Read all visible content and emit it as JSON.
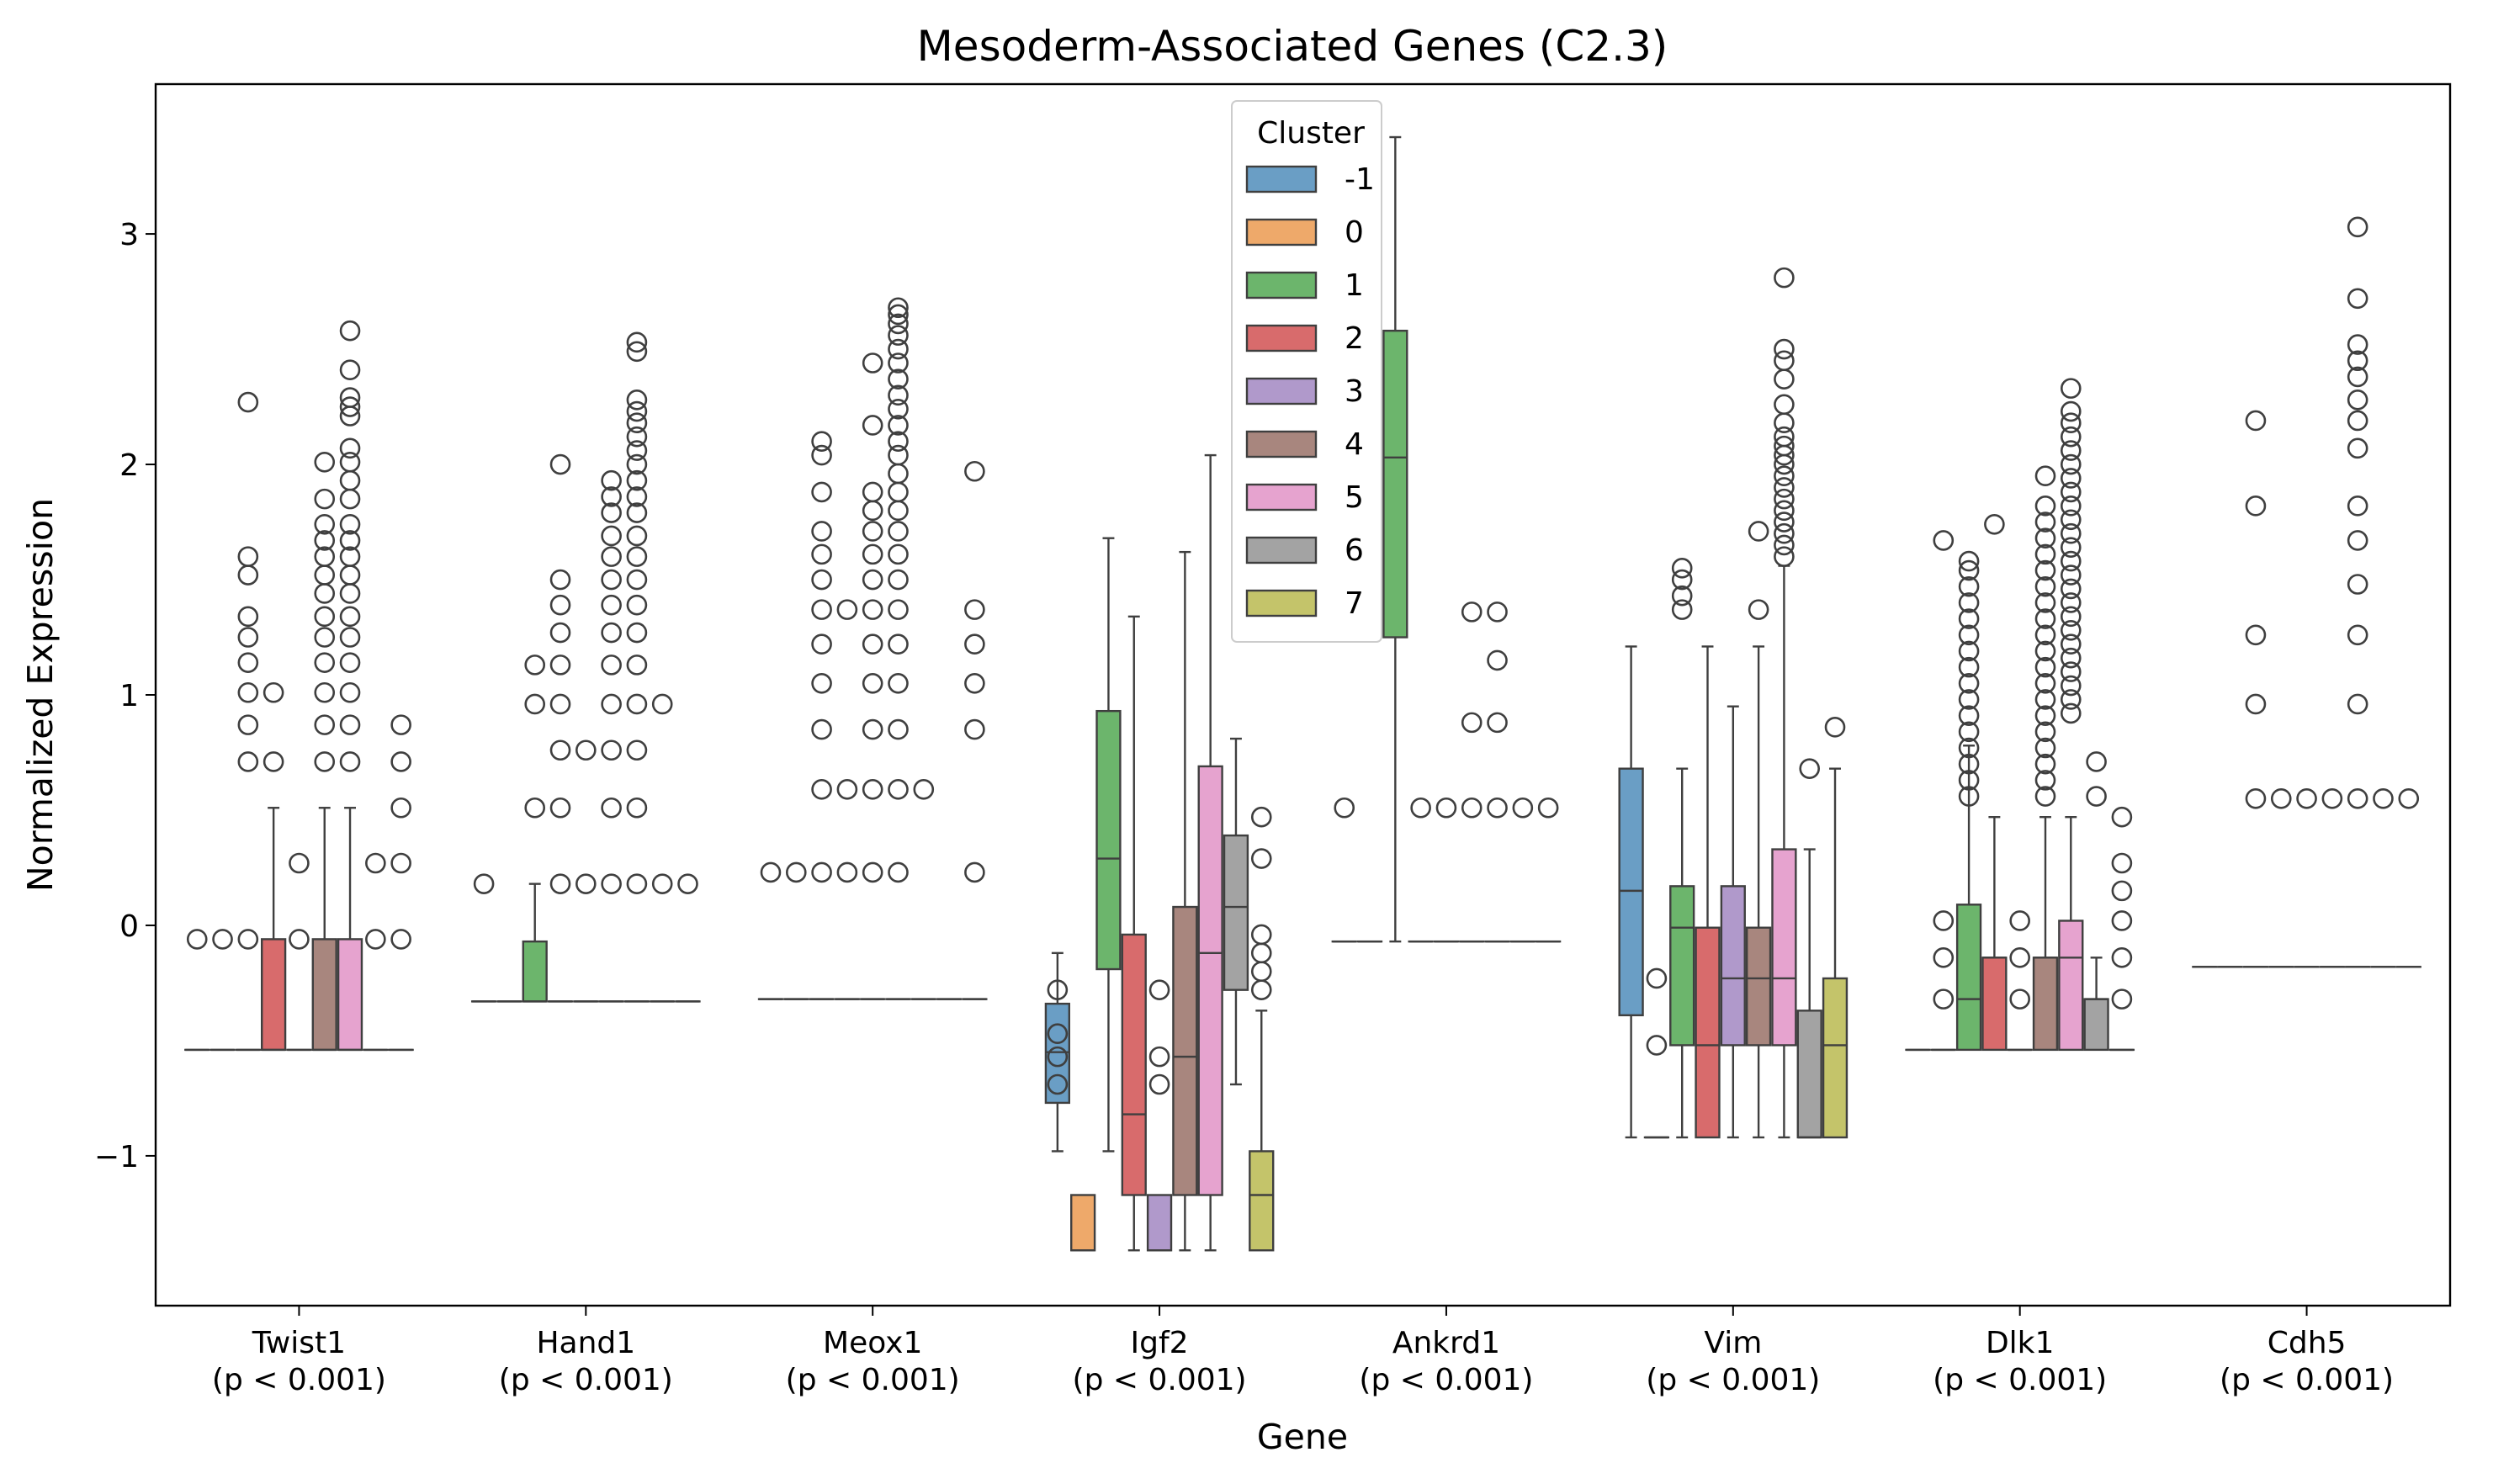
{
  "chart_data": {
    "type": "box",
    "title": "Mesoderm-Associated Genes (C2.3)",
    "xlabel": "Gene",
    "ylabel": "Normalized Expression",
    "ylim": [
      -1.65,
      3.65
    ],
    "yticks": [
      -1,
      0,
      1,
      2,
      3
    ],
    "grid": false,
    "legend": {
      "title": "Cluster",
      "placement": "top-center"
    },
    "categories": [
      {
        "name": "Twist1",
        "p": "(p < 0.001)"
      },
      {
        "name": "Hand1",
        "p": "(p < 0.001)"
      },
      {
        "name": "Meox1",
        "p": "(p < 0.001)"
      },
      {
        "name": "Igf2",
        "p": "(p < 0.001)"
      },
      {
        "name": "Ankrd1",
        "p": "(p < 0.001)"
      },
      {
        "name": "Vim",
        "p": "(p < 0.001)"
      },
      {
        "name": "Dlk1",
        "p": "(p < 0.001)"
      },
      {
        "name": "Cdh5",
        "p": "(p < 0.001)"
      }
    ],
    "clusters": [
      {
        "name": "-1",
        "color": "#6a9ec5"
      },
      {
        "name": "0",
        "color": "#eea96a"
      },
      {
        "name": "1",
        "color": "#6cb56c"
      },
      {
        "name": "2",
        "color": "#d86b6c"
      },
      {
        "name": "3",
        "color": "#b099cb"
      },
      {
        "name": "4",
        "color": "#a8867e"
      },
      {
        "name": "5",
        "color": "#e6a3cf"
      },
      {
        "name": "6",
        "color": "#a3a3a3"
      },
      {
        "name": "7",
        "color": "#c4c46a"
      }
    ],
    "boxes": [
      [
        {
          "low": -0.54,
          "q1": -0.54,
          "med": -0.54,
          "q3": -0.54,
          "high": -0.54,
          "fliers": [
            -0.06
          ]
        },
        {
          "low": -0.54,
          "q1": -0.54,
          "med": -0.54,
          "q3": -0.54,
          "high": -0.54,
          "fliers": [
            -0.06
          ]
        },
        {
          "low": -0.54,
          "q1": -0.54,
          "med": -0.54,
          "q3": -0.54,
          "high": -0.54,
          "fliers": [
            -0.06,
            0.71,
            0.87,
            1.01,
            1.14,
            1.25,
            1.34,
            1.52,
            1.6,
            2.27
          ]
        },
        {
          "low": -0.54,
          "q1": -0.54,
          "med": -0.54,
          "q3": -0.06,
          "high": 0.51,
          "fliers": [
            0.71,
            1.01
          ]
        },
        {
          "low": -0.54,
          "q1": -0.54,
          "med": -0.54,
          "q3": -0.54,
          "high": -0.54,
          "fliers": [
            -0.06,
            0.27
          ]
        },
        {
          "low": -0.54,
          "q1": -0.54,
          "med": -0.54,
          "q3": -0.06,
          "high": 0.51,
          "fliers": [
            0.71,
            0.87,
            1.01,
            1.14,
            1.25,
            1.34,
            1.44,
            1.52,
            1.6,
            1.67,
            1.74,
            1.85,
            2.01
          ]
        },
        {
          "low": -0.54,
          "q1": -0.54,
          "med": -0.54,
          "q3": -0.06,
          "high": 0.51,
          "fliers": [
            0.71,
            0.87,
            1.01,
            1.14,
            1.25,
            1.34,
            1.44,
            1.52,
            1.6,
            1.67,
            1.74,
            1.85,
            1.93,
            2.01,
            2.07,
            2.21,
            2.25,
            2.29,
            2.41,
            2.58
          ]
        },
        {
          "low": -0.54,
          "q1": -0.54,
          "med": -0.54,
          "q3": -0.54,
          "high": -0.54,
          "fliers": [
            -0.06,
            0.27
          ]
        },
        {
          "low": -0.54,
          "q1": -0.54,
          "med": -0.54,
          "q3": -0.54,
          "high": -0.54,
          "fliers": [
            -0.06,
            0.27,
            0.51,
            0.71,
            0.87
          ]
        }
      ],
      [
        {
          "low": -0.33,
          "q1": -0.33,
          "med": -0.33,
          "q3": -0.33,
          "high": -0.33,
          "fliers": [
            0.18
          ]
        },
        {
          "low": -0.33,
          "q1": -0.33,
          "med": -0.33,
          "q3": -0.33,
          "high": -0.33,
          "fliers": []
        },
        {
          "low": -0.33,
          "q1": -0.33,
          "med": -0.33,
          "q3": -0.07,
          "high": 0.18,
          "fliers": [
            0.51,
            0.96,
            1.13
          ]
        },
        {
          "low": -0.33,
          "q1": -0.33,
          "med": -0.33,
          "q3": -0.33,
          "high": -0.33,
          "fliers": [
            0.18,
            0.51,
            0.76,
            0.96,
            1.13,
            1.27,
            1.39,
            1.5,
            2.0
          ]
        },
        {
          "low": -0.33,
          "q1": -0.33,
          "med": -0.33,
          "q3": -0.33,
          "high": -0.33,
          "fliers": [
            0.18,
            0.76
          ]
        },
        {
          "low": -0.33,
          "q1": -0.33,
          "med": -0.33,
          "q3": -0.33,
          "high": -0.33,
          "fliers": [
            0.18,
            0.51,
            0.76,
            0.96,
            1.13,
            1.27,
            1.39,
            1.5,
            1.6,
            1.69,
            1.79,
            1.86,
            1.93
          ]
        },
        {
          "low": -0.33,
          "q1": -0.33,
          "med": -0.33,
          "q3": -0.33,
          "high": -0.33,
          "fliers": [
            0.18,
            0.51,
            0.76,
            0.96,
            1.13,
            1.27,
            1.39,
            1.5,
            1.6,
            1.69,
            1.79,
            1.86,
            1.93,
            2.0,
            2.06,
            2.12,
            2.18,
            2.23,
            2.28,
            2.49,
            2.53
          ]
        },
        {
          "low": -0.33,
          "q1": -0.33,
          "med": -0.33,
          "q3": -0.33,
          "high": -0.33,
          "fliers": [
            0.18,
            0.96
          ]
        },
        {
          "low": -0.33,
          "q1": -0.33,
          "med": -0.33,
          "q3": -0.33,
          "high": -0.33,
          "fliers": [
            0.18
          ]
        }
      ],
      [
        {
          "low": -0.32,
          "q1": -0.32,
          "med": -0.32,
          "q3": -0.32,
          "high": -0.32,
          "fliers": [
            0.23
          ]
        },
        {
          "low": -0.32,
          "q1": -0.32,
          "med": -0.32,
          "q3": -0.32,
          "high": -0.32,
          "fliers": [
            0.23
          ]
        },
        {
          "low": -0.32,
          "q1": -0.32,
          "med": -0.32,
          "q3": -0.32,
          "high": -0.32,
          "fliers": [
            0.23,
            0.59,
            0.85,
            1.05,
            1.22,
            1.37,
            1.5,
            1.61,
            1.71,
            1.88,
            2.04,
            2.1
          ]
        },
        {
          "low": -0.32,
          "q1": -0.32,
          "med": -0.32,
          "q3": -0.32,
          "high": -0.32,
          "fliers": [
            0.23,
            0.59,
            1.37
          ]
        },
        {
          "low": -0.32,
          "q1": -0.32,
          "med": -0.32,
          "q3": -0.32,
          "high": -0.32,
          "fliers": [
            0.23,
            0.59,
            0.85,
            1.05,
            1.22,
            1.37,
            1.5,
            1.61,
            1.71,
            1.8,
            1.88,
            2.17,
            2.44
          ]
        },
        {
          "low": -0.32,
          "q1": -0.32,
          "med": -0.32,
          "q3": -0.32,
          "high": -0.32,
          "fliers": [
            0.23,
            0.59,
            0.85,
            1.05,
            1.22,
            1.37,
            1.5,
            1.61,
            1.71,
            1.8,
            1.88,
            1.96,
            2.04,
            2.1,
            2.17,
            2.24,
            2.3,
            2.37,
            2.44,
            2.5,
            2.56,
            2.61,
            2.65,
            2.68
          ]
        },
        {
          "low": -0.32,
          "q1": -0.32,
          "med": -0.32,
          "q3": -0.32,
          "high": -0.32,
          "fliers": [
            0.59
          ]
        },
        {
          "low": -0.32,
          "q1": -0.32,
          "med": -0.32,
          "q3": -0.32,
          "high": -0.32,
          "fliers": []
        },
        {
          "low": -0.32,
          "q1": -0.32,
          "med": -0.32,
          "q3": -0.32,
          "high": -0.32,
          "fliers": [
            0.23,
            0.85,
            1.05,
            1.22,
            1.37,
            1.97
          ]
        }
      ],
      [
        {
          "low": -0.98,
          "q1": -0.77,
          "med": -0.55,
          "q3": -0.34,
          "high": -0.12,
          "fliers": [
            -0.28,
            -0.47,
            -0.57,
            -0.69
          ]
        },
        {
          "low": -1.41,
          "q1": -1.41,
          "med": -1.41,
          "q3": -1.17,
          "high": -1.17,
          "fliers": []
        },
        {
          "low": -0.98,
          "q1": -0.19,
          "med": 0.29,
          "q3": 0.93,
          "high": 1.68,
          "fliers": []
        },
        {
          "low": -1.41,
          "q1": -1.17,
          "med": -0.82,
          "q3": -0.04,
          "high": 1.34,
          "fliers": []
        },
        {
          "low": -1.41,
          "q1": -1.41,
          "med": -1.41,
          "q3": -1.17,
          "high": -1.17,
          "fliers": [
            -0.28,
            -0.57,
            -0.69
          ]
        },
        {
          "low": -1.41,
          "q1": -1.17,
          "med": -0.57,
          "q3": 0.08,
          "high": 1.62,
          "fliers": []
        },
        {
          "low": -1.41,
          "q1": -1.17,
          "med": -0.12,
          "q3": 0.69,
          "high": 2.04,
          "fliers": []
        },
        {
          "low": -0.69,
          "q1": -0.28,
          "med": 0.08,
          "q3": 0.39,
          "high": 0.81,
          "fliers": []
        },
        {
          "low": -1.41,
          "q1": -1.41,
          "med": -1.17,
          "q3": -0.98,
          "high": -0.37,
          "fliers": [
            0.47,
            0.29,
            -0.04,
            -0.12,
            -0.2,
            -0.28
          ]
        }
      ],
      [
        {
          "low": -0.07,
          "q1": -0.07,
          "med": -0.07,
          "q3": -0.07,
          "high": -0.07,
          "fliers": [
            0.51
          ]
        },
        {
          "low": -0.07,
          "q1": -0.07,
          "med": -0.07,
          "q3": -0.07,
          "high": -0.07,
          "fliers": []
        },
        {
          "low": -0.07,
          "q1": 1.25,
          "med": 2.03,
          "q3": 2.58,
          "high": 3.42,
          "fliers": []
        },
        {
          "low": -0.07,
          "q1": -0.07,
          "med": -0.07,
          "q3": -0.07,
          "high": -0.07,
          "fliers": [
            0.51
          ]
        },
        {
          "low": -0.07,
          "q1": -0.07,
          "med": -0.07,
          "q3": -0.07,
          "high": -0.07,
          "fliers": [
            0.51
          ]
        },
        {
          "low": -0.07,
          "q1": -0.07,
          "med": -0.07,
          "q3": -0.07,
          "high": -0.07,
          "fliers": [
            0.51,
            0.88,
            1.36
          ]
        },
        {
          "low": -0.07,
          "q1": -0.07,
          "med": -0.07,
          "q3": -0.07,
          "high": -0.07,
          "fliers": [
            0.51,
            0.88,
            1.15,
            1.36
          ]
        },
        {
          "low": -0.07,
          "q1": -0.07,
          "med": -0.07,
          "q3": -0.07,
          "high": -0.07,
          "fliers": [
            0.51
          ]
        },
        {
          "low": -0.07,
          "q1": -0.07,
          "med": -0.07,
          "q3": -0.07,
          "high": -0.07,
          "fliers": [
            0.51
          ]
        }
      ],
      [
        {
          "low": -0.92,
          "q1": -0.39,
          "med": 0.15,
          "q3": 0.68,
          "high": 1.21,
          "fliers": []
        },
        {
          "low": -0.92,
          "q1": -0.92,
          "med": -0.92,
          "q3": -0.92,
          "high": -0.92,
          "fliers": [
            -0.23,
            -0.52
          ]
        },
        {
          "low": -0.92,
          "q1": -0.52,
          "med": -0.01,
          "q3": 0.17,
          "high": 0.68,
          "fliers": [
            1.37,
            1.43,
            1.5,
            1.55
          ]
        },
        {
          "low": -0.92,
          "q1": -0.92,
          "med": -0.52,
          "q3": -0.01,
          "high": 1.21,
          "fliers": []
        },
        {
          "low": -0.92,
          "q1": -0.52,
          "med": -0.23,
          "q3": 0.17,
          "high": 0.95,
          "fliers": []
        },
        {
          "low": -0.92,
          "q1": -0.52,
          "med": -0.23,
          "q3": -0.01,
          "high": 1.21,
          "fliers": [
            1.37,
            1.71
          ]
        },
        {
          "low": -0.92,
          "q1": -0.52,
          "med": -0.23,
          "q3": 0.33,
          "high": 1.56,
          "fliers": [
            1.6,
            1.65,
            1.7,
            1.75,
            1.8,
            1.85,
            1.9,
            1.95,
            2.0,
            2.04,
            2.08,
            2.12,
            2.18,
            2.26,
            2.37,
            2.45,
            2.5,
            2.81
          ]
        },
        {
          "low": -0.92,
          "q1": -0.92,
          "med": -0.92,
          "q3": -0.37,
          "high": 0.33,
          "fliers": [
            0.68
          ]
        },
        {
          "low": -0.92,
          "q1": -0.92,
          "med": -0.52,
          "q3": -0.23,
          "high": 0.68,
          "fliers": [
            0.86
          ]
        }
      ],
      [
        {
          "low": -0.54,
          "q1": -0.54,
          "med": -0.54,
          "q3": -0.54,
          "high": -0.54,
          "fliers": []
        },
        {
          "low": -0.54,
          "q1": -0.54,
          "med": -0.54,
          "q3": -0.54,
          "high": -0.54,
          "fliers": [
            -0.32,
            -0.14,
            0.02,
            1.67
          ]
        },
        {
          "low": -0.54,
          "q1": -0.54,
          "med": -0.32,
          "q3": 0.09,
          "high": 0.78,
          "fliers": [
            0.56,
            0.63,
            0.7,
            0.77,
            0.84,
            0.91,
            0.98,
            1.05,
            1.12,
            1.19,
            1.26,
            1.33,
            1.4,
            1.47,
            1.54,
            1.58
          ]
        },
        {
          "low": -0.54,
          "q1": -0.54,
          "med": -0.14,
          "q3": -0.14,
          "high": 0.47,
          "fliers": [
            1.74
          ]
        },
        {
          "low": -0.54,
          "q1": -0.54,
          "med": -0.54,
          "q3": -0.54,
          "high": -0.54,
          "fliers": [
            -0.32,
            -0.14,
            0.02
          ]
        },
        {
          "low": -0.54,
          "q1": -0.54,
          "med": -0.14,
          "q3": -0.14,
          "high": 0.47,
          "fliers": [
            0.56,
            0.63,
            0.7,
            0.77,
            0.84,
            0.91,
            0.98,
            1.05,
            1.12,
            1.19,
            1.26,
            1.33,
            1.4,
            1.47,
            1.54,
            1.61,
            1.68,
            1.75,
            1.82,
            1.95
          ]
        },
        {
          "low": -0.54,
          "q1": -0.54,
          "med": -0.14,
          "q3": 0.02,
          "high": 0.47,
          "fliers": [
            0.92,
            0.98,
            1.04,
            1.1,
            1.16,
            1.22,
            1.28,
            1.34,
            1.4,
            1.46,
            1.52,
            1.58,
            1.64,
            1.7,
            1.76,
            1.82,
            1.88,
            1.94,
            2.0,
            2.06,
            2.12,
            2.18,
            2.23,
            2.33
          ]
        },
        {
          "low": -0.54,
          "q1": -0.54,
          "med": -0.32,
          "q3": -0.32,
          "high": -0.14,
          "fliers": [
            0.56,
            0.71
          ]
        },
        {
          "low": -0.54,
          "q1": -0.54,
          "med": -0.54,
          "q3": -0.54,
          "high": -0.54,
          "fliers": [
            -0.32,
            -0.14,
            0.02,
            0.15,
            0.27,
            0.47
          ]
        }
      ],
      [
        {
          "low": -0.18,
          "q1": -0.18,
          "med": -0.18,
          "q3": -0.18,
          "high": -0.18,
          "fliers": []
        },
        {
          "low": -0.18,
          "q1": -0.18,
          "med": -0.18,
          "q3": -0.18,
          "high": -0.18,
          "fliers": []
        },
        {
          "low": -0.18,
          "q1": -0.18,
          "med": -0.18,
          "q3": -0.18,
          "high": -0.18,
          "fliers": [
            0.55,
            0.96,
            1.26,
            1.82,
            2.19
          ]
        },
        {
          "low": -0.18,
          "q1": -0.18,
          "med": -0.18,
          "q3": -0.18,
          "high": -0.18,
          "fliers": [
            0.55
          ]
        },
        {
          "low": -0.18,
          "q1": -0.18,
          "med": -0.18,
          "q3": -0.18,
          "high": -0.18,
          "fliers": [
            0.55
          ]
        },
        {
          "low": -0.18,
          "q1": -0.18,
          "med": -0.18,
          "q3": -0.18,
          "high": -0.18,
          "fliers": [
            0.55
          ]
        },
        {
          "low": -0.18,
          "q1": -0.18,
          "med": -0.18,
          "q3": -0.18,
          "high": -0.18,
          "fliers": [
            0.55,
            0.96,
            1.26,
            1.48,
            1.67,
            1.82,
            2.07,
            2.19,
            2.28,
            2.38,
            2.45,
            2.52,
            2.72,
            3.03
          ]
        },
        {
          "low": -0.18,
          "q1": -0.18,
          "med": -0.18,
          "q3": -0.18,
          "high": -0.18,
          "fliers": [
            0.55
          ]
        },
        {
          "low": -0.18,
          "q1": -0.18,
          "med": -0.18,
          "q3": -0.18,
          "high": -0.18,
          "fliers": [
            0.55
          ]
        }
      ]
    ]
  }
}
